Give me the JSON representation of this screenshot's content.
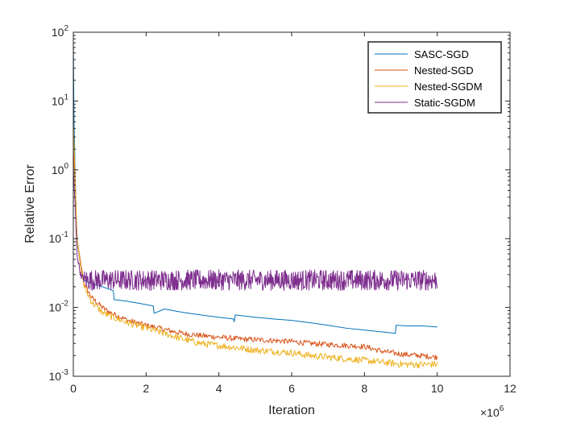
{
  "chart_data": {
    "type": "line",
    "title": "",
    "xlabel": "Iteration",
    "ylabel": "Relative Error",
    "xscale": "linear",
    "yscale": "log",
    "xlim": [
      0,
      12
    ],
    "ylim": [
      0.001,
      100
    ],
    "x_multiplier_base": "×10",
    "x_multiplier_exp": "6",
    "xticks": [
      0,
      2,
      4,
      6,
      8,
      10,
      12
    ],
    "yticks": [
      {
        "value": 100,
        "base": "10",
        "exp": "2"
      },
      {
        "value": 10,
        "base": "10",
        "exp": "1"
      },
      {
        "value": 1,
        "base": "10",
        "exp": "0"
      },
      {
        "value": 0.1,
        "base": "10",
        "exp": "-1"
      },
      {
        "value": 0.01,
        "base": "10",
        "exp": "-2"
      },
      {
        "value": 0.001,
        "base": "10",
        "exp": "-3"
      }
    ],
    "grid": false,
    "legend_position": "top-right",
    "series": [
      {
        "name": "SASC-SGD",
        "color": "#0072BD",
        "noise": 0.0,
        "points": [
          [
            0,
            80
          ],
          [
            0.02,
            5
          ],
          [
            0.05,
            1
          ],
          [
            0.08,
            0.2
          ],
          [
            0.12,
            0.08
          ],
          [
            0.2,
            0.04
          ],
          [
            0.3,
            0.025
          ],
          [
            0.5,
            0.022
          ],
          [
            0.8,
            0.02
          ],
          [
            1.1,
            0.0175
          ],
          [
            1.12,
            0.013
          ],
          [
            1.4,
            0.0125
          ],
          [
            1.8,
            0.0115
          ],
          [
            2.2,
            0.0105
          ],
          [
            2.22,
            0.0082
          ],
          [
            2.5,
            0.0095
          ],
          [
            3.0,
            0.0085
          ],
          [
            3.5,
            0.0078
          ],
          [
            4.0,
            0.0072
          ],
          [
            4.4,
            0.0068
          ],
          [
            4.42,
            0.0062
          ],
          [
            4.45,
            0.0078
          ],
          [
            5.0,
            0.0072
          ],
          [
            5.5,
            0.0068
          ],
          [
            6.0,
            0.0065
          ],
          [
            6.5,
            0.006
          ],
          [
            7.0,
            0.0055
          ],
          [
            7.5,
            0.005
          ],
          [
            8.0,
            0.0047
          ],
          [
            8.5,
            0.0044
          ],
          [
            8.85,
            0.0042
          ],
          [
            8.87,
            0.0055
          ],
          [
            9.2,
            0.0054
          ],
          [
            9.6,
            0.0054
          ],
          [
            10.0,
            0.0052
          ]
        ]
      },
      {
        "name": "Nested-SGD",
        "color": "#D95319",
        "noise": 0.04,
        "points": [
          [
            0,
            2
          ],
          [
            0.05,
            0.6
          ],
          [
            0.1,
            0.1
          ],
          [
            0.2,
            0.045
          ],
          [
            0.3,
            0.022
          ],
          [
            0.5,
            0.014
          ],
          [
            0.8,
            0.01
          ],
          [
            1.0,
            0.0085
          ],
          [
            1.5,
            0.0065
          ],
          [
            2.0,
            0.0055
          ],
          [
            2.5,
            0.0048
          ],
          [
            3.0,
            0.0042
          ],
          [
            3.5,
            0.0039
          ],
          [
            4.0,
            0.0037
          ],
          [
            4.5,
            0.0035
          ],
          [
            5.0,
            0.0034
          ],
          [
            5.5,
            0.0033
          ],
          [
            6.0,
            0.0032
          ],
          [
            6.5,
            0.003
          ],
          [
            7.0,
            0.0029
          ],
          [
            7.5,
            0.0028
          ],
          [
            8.0,
            0.0027
          ],
          [
            8.5,
            0.0023
          ],
          [
            9.0,
            0.0021
          ],
          [
            9.5,
            0.002
          ],
          [
            10.0,
            0.0019
          ]
        ]
      },
      {
        "name": "Nested-SGDM",
        "color": "#EDB120",
        "noise": 0.05,
        "points": [
          [
            0,
            5
          ],
          [
            0.05,
            0.8
          ],
          [
            0.1,
            0.1
          ],
          [
            0.2,
            0.04
          ],
          [
            0.3,
            0.02
          ],
          [
            0.5,
            0.012
          ],
          [
            0.8,
            0.0085
          ],
          [
            1.0,
            0.0075
          ],
          [
            1.5,
            0.006
          ],
          [
            2.0,
            0.005
          ],
          [
            2.5,
            0.0042
          ],
          [
            3.0,
            0.0035
          ],
          [
            3.5,
            0.003
          ],
          [
            4.0,
            0.0028
          ],
          [
            4.5,
            0.0026
          ],
          [
            5.0,
            0.0024
          ],
          [
            5.5,
            0.0023
          ],
          [
            6.0,
            0.0022
          ],
          [
            6.5,
            0.002
          ],
          [
            7.0,
            0.0019
          ],
          [
            7.5,
            0.0018
          ],
          [
            8.0,
            0.0017
          ],
          [
            8.5,
            0.0016
          ],
          [
            9.0,
            0.0015
          ],
          [
            9.5,
            0.00148
          ],
          [
            10.0,
            0.0015
          ]
        ]
      },
      {
        "name": "Static-SGDM",
        "color": "#7E2F8E",
        "noise": 0.15,
        "points": [
          [
            0,
            1
          ],
          [
            0.05,
            0.3
          ],
          [
            0.1,
            0.06
          ],
          [
            0.2,
            0.03
          ],
          [
            0.3,
            0.025
          ],
          [
            1.0,
            0.025
          ],
          [
            3.0,
            0.025
          ],
          [
            5.0,
            0.025
          ],
          [
            7.0,
            0.025
          ],
          [
            9.0,
            0.025
          ],
          [
            10.0,
            0.025
          ]
        ]
      }
    ]
  }
}
